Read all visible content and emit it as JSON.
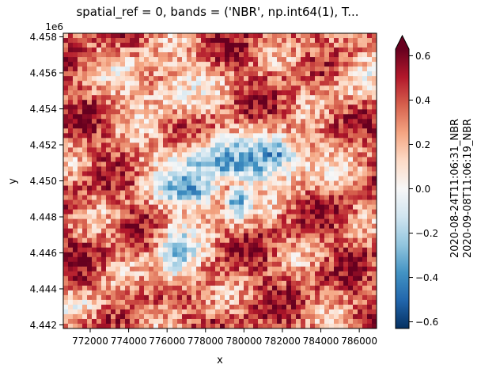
{
  "chart_data": {
    "type": "heatmap",
    "title": "spatial_ref = 0, bands = ('NBR', np.int64(1), T...",
    "xlabel": "x",
    "ylabel": "y",
    "y_offset_label": "1e6",
    "x_ticks": [
      "772000",
      "774000",
      "776000",
      "778000",
      "780000",
      "782000",
      "784000",
      "786000"
    ],
    "x_tick_values": [
      772000,
      774000,
      776000,
      778000,
      780000,
      782000,
      784000,
      786000
    ],
    "y_ticks": [
      "4.442",
      "4.444",
      "4.446",
      "4.448",
      "4.450",
      "4.452",
      "4.454",
      "4.456",
      "4.458"
    ],
    "y_tick_values": [
      4.442,
      4.444,
      4.446,
      4.448,
      4.45,
      4.452,
      4.454,
      4.456,
      4.458
    ],
    "xlim": [
      770600,
      786900
    ],
    "ylim": [
      4.4418,
      4.4582
    ],
    "colorbar": {
      "label_line1": "2020-08-24T11:06:31_NBR",
      "label_line2": "2020-09-08T11:06:19_NBR",
      "ticks": [
        "−0.6",
        "−0.4",
        "−0.2",
        "0.0",
        "0.2",
        "0.4",
        "0.6"
      ],
      "tick_values": [
        -0.6,
        -0.4,
        -0.2,
        0.0,
        0.2,
        0.4,
        0.6
      ],
      "range": [
        -0.63,
        0.63
      ],
      "extend": "max",
      "colormap": "RdBu_r"
    },
    "colormap_stops": [
      "#053061",
      "#2166ac",
      "#4393c3",
      "#92c5de",
      "#d1e5f0",
      "#f7f7f7",
      "#fddbc7",
      "#f4a582",
      "#d6604d",
      "#b2182b",
      "#67001f"
    ],
    "grid": false
  }
}
